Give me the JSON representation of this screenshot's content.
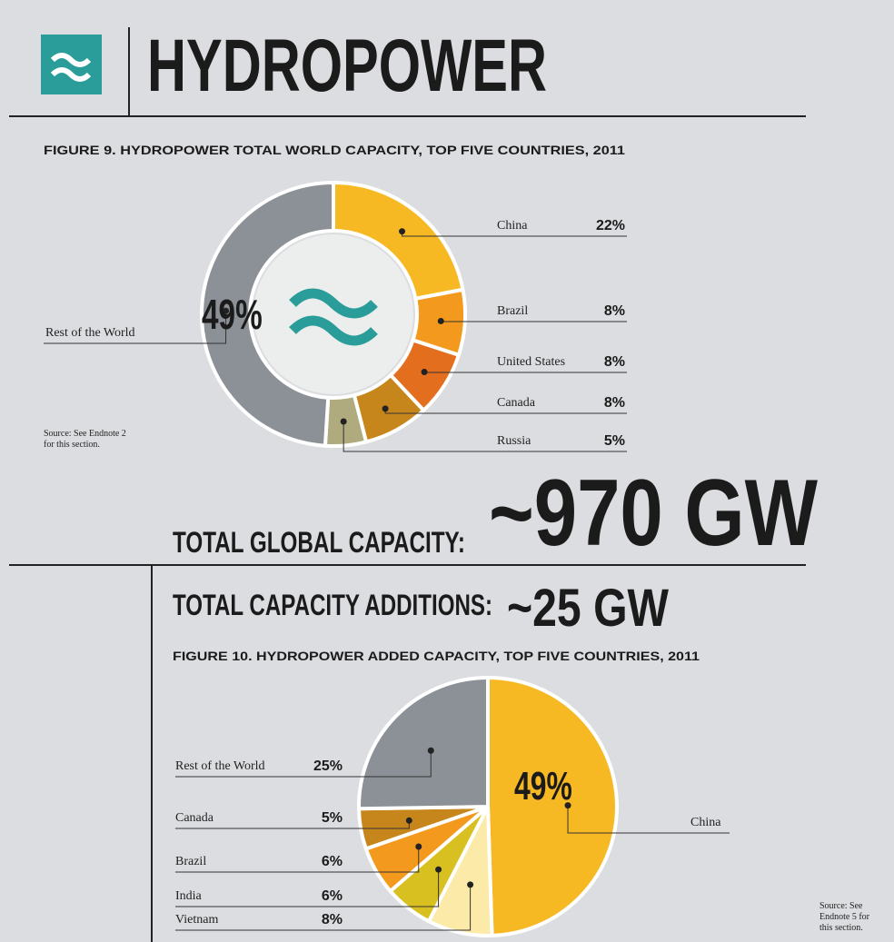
{
  "header": {
    "title": "HYDROPOWER"
  },
  "chart_data": [
    {
      "type": "donut",
      "title": "FIGURE 9. HYDROPOWER TOTAL WORLD CAPACITY, TOP FIVE COUNTRIES, 2011",
      "categories": [
        "China",
        "Brazil",
        "United States",
        "Canada",
        "Russia",
        "Rest of the World"
      ],
      "values": [
        22,
        8,
        8,
        8,
        5,
        49
      ],
      "value_labels": [
        "22%",
        "8%",
        "8%",
        "8%",
        "5%",
        "49%"
      ],
      "colors": [
        "#f7b923",
        "#f39a1e",
        "#e36f1e",
        "#c7861b",
        "#b0aa7f",
        "#8b9196"
      ],
      "source": [
        "Source: See Endnote 2",
        "for this section."
      ]
    },
    {
      "type": "pie",
      "title": "FIGURE 10. HYDROPOWER ADDED CAPACITY, TOP FIVE COUNTRIES, 2011",
      "categories": [
        "China",
        "Vietnam",
        "India",
        "Brazil",
        "Canada",
        "Rest of the World"
      ],
      "values": [
        49,
        8,
        6,
        6,
        5,
        25
      ],
      "value_labels": [
        "49%",
        "8%",
        "6%",
        "6%",
        "5%",
        "25%"
      ],
      "colors": [
        "#f7b923",
        "#fbeaa8",
        "#d8c020",
        "#f39a1e",
        "#c7861b",
        "#8b9196"
      ],
      "source": [
        "Source: See",
        "Endnote 5 for",
        "this section."
      ]
    }
  ],
  "totals": {
    "global_label": "TOTAL GLOBAL CAPACITY:",
    "global_value": "~970 GW",
    "additions_label": "TOTAL CAPACITY ADDITIONS:",
    "additions_value": "~25 GW"
  }
}
